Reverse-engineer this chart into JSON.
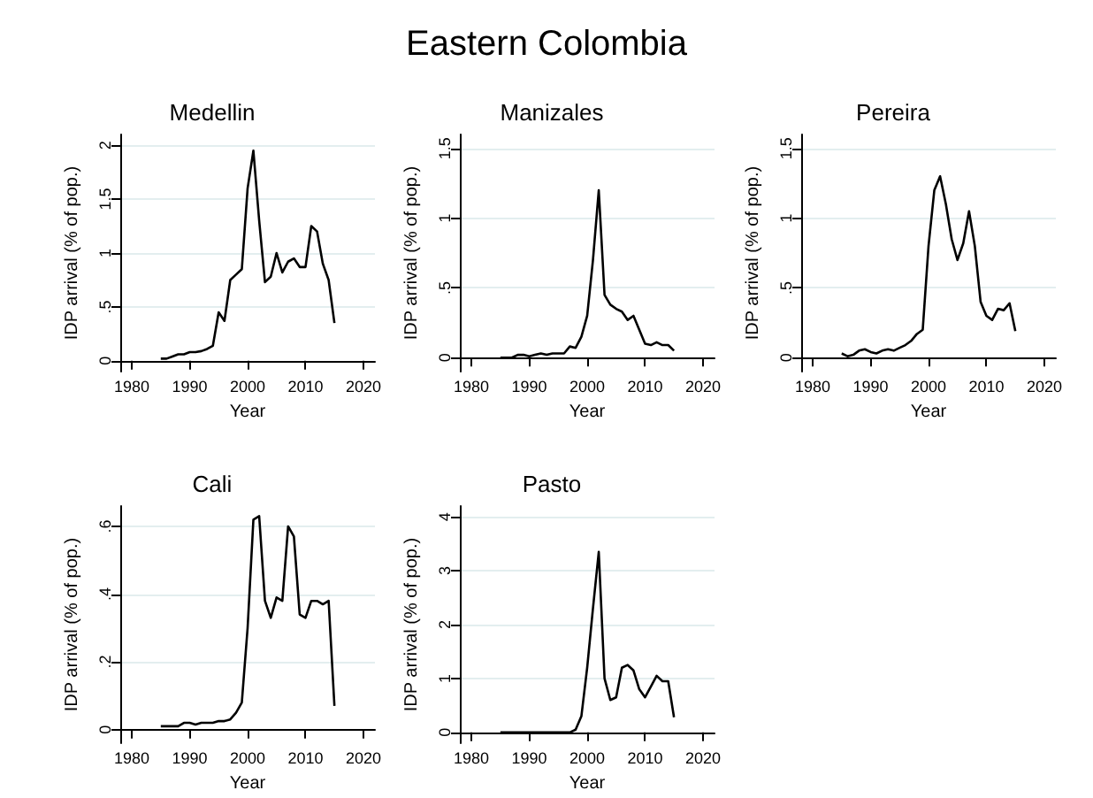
{
  "chart_data": [
    {
      "type": "line",
      "title": "Medellin",
      "annotations": [
        "Eastern Colombia"
      ],
      "xlabel": "Year",
      "ylabel": "IDP arrival (% of pop.)",
      "x": [
        1985,
        1986,
        1987,
        1988,
        1989,
        1990,
        1991,
        1992,
        1993,
        1994,
        1995,
        1996,
        1997,
        1998,
        1999,
        2000,
        2001,
        2002,
        2003,
        2004,
        2005,
        2006,
        2007,
        2008,
        2009,
        2010,
        2011,
        2012,
        2013,
        2014,
        2015
      ],
      "series": [
        {
          "color": "#000000",
          "values": [
            0.02,
            0.02,
            0.04,
            0.06,
            0.06,
            0.08,
            0.08,
            0.09,
            0.11,
            0.14,
            0.45,
            0.37,
            0.75,
            0.8,
            0.85,
            1.6,
            1.95,
            1.3,
            0.73,
            0.78,
            1.0,
            0.82,
            0.92,
            0.95,
            0.87,
            0.87,
            1.25,
            1.2,
            0.9,
            0.75,
            0.35
          ]
        }
      ],
      "xlim": [
        1978,
        2022
      ],
      "xticks": [
        1980,
        1990,
        2000,
        2010,
        2020
      ],
      "ylim": [
        -0.1,
        2.1
      ],
      "yticks": [
        0,
        {
          "value": 0.5,
          "label": ".5"
        },
        1,
        1.5,
        2
      ],
      "grid": "y",
      "marker": "none",
      "line_style": "solid"
    },
    {
      "type": "line",
      "title": "Manizales",
      "xlabel": "Year",
      "ylabel": "IDP arrival (% of pop.)",
      "x": [
        1985,
        1986,
        1987,
        1988,
        1989,
        1990,
        1991,
        1992,
        1993,
        1994,
        1995,
        1996,
        1997,
        1998,
        1999,
        2000,
        2001,
        2002,
        2003,
        2004,
        2005,
        2006,
        2007,
        2008,
        2009,
        2010,
        2011,
        2012,
        2013,
        2014,
        2015
      ],
      "series": [
        {
          "color": "#000000",
          "values": [
            0,
            0,
            0,
            0.02,
            0.02,
            0.01,
            0.02,
            0.03,
            0.02,
            0.03,
            0.03,
            0.03,
            0.08,
            0.07,
            0.15,
            0.3,
            0.7,
            1.2,
            0.45,
            0.38,
            0.35,
            0.33,
            0.27,
            0.3,
            0.2,
            0.1,
            0.09,
            0.11,
            0.09,
            0.09,
            0.05
          ]
        }
      ],
      "xlim": [
        1978,
        2022
      ],
      "xticks": [
        1980,
        1990,
        2000,
        2010,
        2020
      ],
      "ylim": [
        -0.1,
        1.6
      ],
      "yticks": [
        0,
        {
          "value": 0.5,
          "label": ".5"
        },
        1,
        1.5
      ],
      "grid": "y",
      "marker": "none",
      "line_style": "solid"
    },
    {
      "type": "line",
      "title": "Pereira",
      "xlabel": "Year",
      "ylabel": "IDP arrival (% of pop.)",
      "x": [
        1985,
        1986,
        1987,
        1988,
        1989,
        1990,
        1991,
        1992,
        1993,
        1994,
        1995,
        1996,
        1997,
        1998,
        1999,
        2000,
        2001,
        2002,
        2003,
        2004,
        2005,
        2006,
        2007,
        2008,
        2009,
        2010,
        2011,
        2012,
        2013,
        2014,
        2015
      ],
      "series": [
        {
          "color": "#000000",
          "values": [
            0.03,
            0.01,
            0.02,
            0.05,
            0.06,
            0.04,
            0.03,
            0.05,
            0.06,
            0.05,
            0.07,
            0.09,
            0.12,
            0.17,
            0.2,
            0.8,
            1.2,
            1.3,
            1.1,
            0.85,
            0.7,
            0.82,
            1.05,
            0.8,
            0.4,
            0.3,
            0.27,
            0.35,
            0.34,
            0.39,
            0.19
          ]
        }
      ],
      "xlim": [
        1978,
        2022
      ],
      "xticks": [
        1980,
        1990,
        2000,
        2010,
        2020
      ],
      "ylim": [
        -0.1,
        1.6
      ],
      "yticks": [
        0,
        {
          "value": 0.5,
          "label": ".5"
        },
        1,
        1.5
      ],
      "grid": "y",
      "marker": "none",
      "line_style": "solid"
    },
    {
      "type": "line",
      "title": "Cali",
      "xlabel": "Year",
      "ylabel": "IDP arrival (% of pop.)",
      "x": [
        1985,
        1986,
        1987,
        1988,
        1989,
        1990,
        1991,
        1992,
        1993,
        1994,
        1995,
        1996,
        1997,
        1998,
        1999,
        2000,
        2001,
        2002,
        2003,
        2004,
        2005,
        2006,
        2007,
        2008,
        2009,
        2010,
        2011,
        2012,
        2013,
        2014,
        2015
      ],
      "series": [
        {
          "color": "#000000",
          "values": [
            0.01,
            0.01,
            0.01,
            0.01,
            0.02,
            0.02,
            0.015,
            0.02,
            0.02,
            0.02,
            0.025,
            0.025,
            0.03,
            0.05,
            0.08,
            0.3,
            0.62,
            0.63,
            0.38,
            0.33,
            0.39,
            0.38,
            0.6,
            0.57,
            0.34,
            0.33,
            0.38,
            0.38,
            0.37,
            0.38,
            0.07
          ]
        }
      ],
      "xlim": [
        1978,
        2022
      ],
      "xticks": [
        1980,
        1990,
        2000,
        2010,
        2020
      ],
      "ylim": [
        -0.04,
        0.66
      ],
      "yticks": [
        0,
        {
          "value": 0.2,
          "label": ".2"
        },
        {
          "value": 0.4,
          "label": ".4"
        },
        {
          "value": 0.6,
          "label": ".6"
        }
      ],
      "grid": "y",
      "marker": "none",
      "line_style": "solid"
    },
    {
      "type": "line",
      "title": "Pasto",
      "xlabel": "Year",
      "ylabel": "IDP arrival (% of pop.)",
      "x": [
        1985,
        1986,
        1987,
        1988,
        1989,
        1990,
        1991,
        1992,
        1993,
        1994,
        1995,
        1996,
        1997,
        1998,
        1999,
        2000,
        2001,
        2002,
        2003,
        2004,
        2005,
        2006,
        2007,
        2008,
        2009,
        2010,
        2011,
        2012,
        2013,
        2014,
        2015
      ],
      "series": [
        {
          "color": "#000000",
          "values": [
            0,
            0,
            0,
            0,
            0,
            0,
            0,
            0,
            0,
            0,
            0,
            0,
            0,
            0.05,
            0.3,
            1.2,
            2.3,
            3.35,
            1.0,
            0.6,
            0.65,
            1.2,
            1.25,
            1.15,
            0.8,
            0.65,
            0.85,
            1.05,
            0.95,
            0.95,
            0.28
          ]
        }
      ],
      "xlim": [
        1978,
        2022
      ],
      "xticks": [
        1980,
        1990,
        2000,
        2010,
        2020
      ],
      "ylim": [
        -0.2,
        4.2
      ],
      "yticks": [
        0,
        1,
        2,
        3,
        4
      ],
      "grid": "y",
      "marker": "none",
      "line_style": "solid"
    }
  ]
}
